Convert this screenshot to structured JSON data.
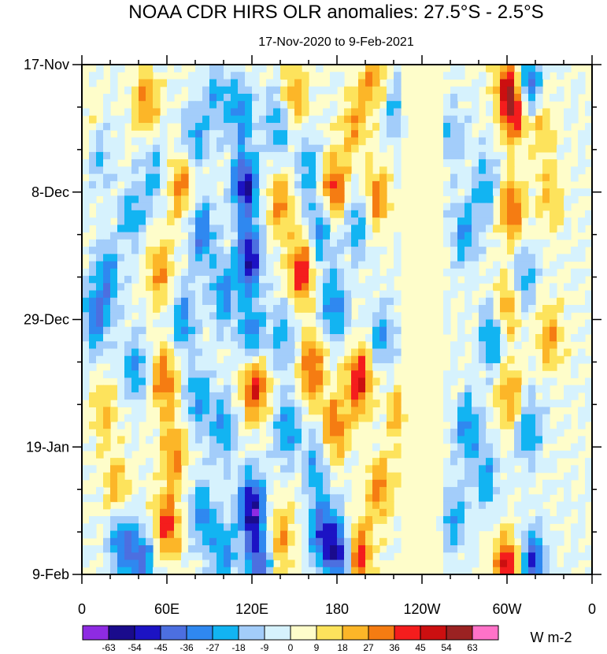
{
  "chart_data": {
    "type": "heatmap",
    "title": "NOAA CDR HIRS OLR anomalies: 27.5°S - 2.5°S",
    "subtitle": "17-Nov-2020 to 9-Feb-2021",
    "xlabel": "",
    "ylabel": "",
    "x_range_deg_east": [
      0,
      360
    ],
    "x_ticks": [
      {
        "deg": 0,
        "label": "0"
      },
      {
        "deg": 60,
        "label": "60E"
      },
      {
        "deg": 120,
        "label": "120E"
      },
      {
        "deg": 180,
        "label": "180"
      },
      {
        "deg": 240,
        "label": "120W"
      },
      {
        "deg": 300,
        "label": "60W"
      },
      {
        "deg": 360,
        "label": "0"
      }
    ],
    "y_range_days": [
      0,
      84
    ],
    "y_ticks": [
      {
        "day": 0,
        "label": "17-Nov"
      },
      {
        "day": 21,
        "label": "8-Dec"
      },
      {
        "day": 42,
        "label": "29-Dec"
      },
      {
        "day": 63,
        "label": "19-Jan"
      },
      {
        "day": 84,
        "label": "9-Feb"
      }
    ],
    "colorbar": {
      "units": "W m-2",
      "levels": [
        "-63",
        "-54",
        "-45",
        "-36",
        "-27",
        "-18",
        "-9",
        "0",
        "9",
        "18",
        "27",
        "36",
        "45",
        "54",
        "63"
      ],
      "colors": [
        "#8e2be2",
        "#1a0b8c",
        "#1c13c4",
        "#4c6fe0",
        "#2f88f0",
        "#12b4f2",
        "#a3cdfa",
        "#d6f2fd",
        "#fefdca",
        "#fde35c",
        "#fcb628",
        "#f57c12",
        "#f41d1d",
        "#cc0f10",
        "#9b2222",
        "#ff72c8"
      ]
    },
    "anomaly_features": [
      {
        "lon": 5,
        "day": 10,
        "value": 10
      },
      {
        "lon": 12,
        "day": 15,
        "value": -18
      },
      {
        "lon": 18,
        "day": 35,
        "value": -30
      },
      {
        "lon": 10,
        "day": 42,
        "value": -36
      },
      {
        "lon": 15,
        "day": 57,
        "value": 20
      },
      {
        "lon": 25,
        "day": 70,
        "value": 25
      },
      {
        "lon": 28,
        "day": 78,
        "value": -36
      },
      {
        "lon": 35,
        "day": 25,
        "value": -25
      },
      {
        "lon": 38,
        "day": 50,
        "value": -27
      },
      {
        "lon": 42,
        "day": 82,
        "value": -40
      },
      {
        "lon": 45,
        "day": 6,
        "value": 28
      },
      {
        "lon": 50,
        "day": 18,
        "value": -20
      },
      {
        "lon": 55,
        "day": 34,
        "value": 28
      },
      {
        "lon": 58,
        "day": 52,
        "value": 36
      },
      {
        "lon": 65,
        "day": 64,
        "value": 30
      },
      {
        "lon": 60,
        "day": 76,
        "value": 40
      },
      {
        "lon": 70,
        "day": 20,
        "value": 30
      },
      {
        "lon": 72,
        "day": 42,
        "value": -30
      },
      {
        "lon": 80,
        "day": 12,
        "value": -25
      },
      {
        "lon": 85,
        "day": 28,
        "value": -35
      },
      {
        "lon": 82,
        "day": 55,
        "value": -30
      },
      {
        "lon": 85,
        "day": 74,
        "value": -30
      },
      {
        "lon": 95,
        "day": 5,
        "value": -22
      },
      {
        "lon": 100,
        "day": 38,
        "value": -30
      },
      {
        "lon": 100,
        "day": 60,
        "value": -28
      },
      {
        "lon": 100,
        "day": 80,
        "value": -30
      },
      {
        "lon": 112,
        "day": 8,
        "value": -30
      },
      {
        "lon": 115,
        "day": 20,
        "value": -55
      },
      {
        "lon": 118,
        "day": 32,
        "value": -55
      },
      {
        "lon": 120,
        "day": 45,
        "value": -35
      },
      {
        "lon": 122,
        "day": 53,
        "value": 48
      },
      {
        "lon": 120,
        "day": 73,
        "value": -60
      },
      {
        "lon": 125,
        "day": 82,
        "value": -45
      },
      {
        "lon": 138,
        "day": 10,
        "value": -25
      },
      {
        "lon": 140,
        "day": 23,
        "value": 28
      },
      {
        "lon": 142,
        "day": 45,
        "value": -25
      },
      {
        "lon": 145,
        "day": 60,
        "value": -30
      },
      {
        "lon": 140,
        "day": 78,
        "value": 28
      },
      {
        "lon": 150,
        "day": 5,
        "value": 26
      },
      {
        "lon": 155,
        "day": 34,
        "value": 45
      },
      {
        "lon": 160,
        "day": 17,
        "value": -25
      },
      {
        "lon": 162,
        "day": 50,
        "value": 38
      },
      {
        "lon": 165,
        "day": 66,
        "value": -25
      },
      {
        "lon": 168,
        "day": 28,
        "value": -30
      },
      {
        "lon": 170,
        "day": 77,
        "value": -45
      },
      {
        "lon": 178,
        "day": 20,
        "value": 40
      },
      {
        "lon": 178,
        "day": 40,
        "value": -35
      },
      {
        "lon": 178,
        "day": 60,
        "value": 36
      },
      {
        "lon": 182,
        "day": 81,
        "value": -50
      },
      {
        "lon": 192,
        "day": 10,
        "value": 25
      },
      {
        "lon": 195,
        "day": 26,
        "value": -28
      },
      {
        "lon": 196,
        "day": 52,
        "value": 48
      },
      {
        "lon": 195,
        "day": 81,
        "value": 45
      },
      {
        "lon": 205,
        "day": 2,
        "value": 28
      },
      {
        "lon": 208,
        "day": 22,
        "value": 32
      },
      {
        "lon": 212,
        "day": 45,
        "value": -25
      },
      {
        "lon": 210,
        "day": 70,
        "value": 30
      },
      {
        "lon": 222,
        "day": 8,
        "value": -20
      },
      {
        "lon": 225,
        "day": 58,
        "value": 25
      },
      {
        "lon": 262,
        "day": 12,
        "value": -18
      },
      {
        "lon": 270,
        "day": 28,
        "value": -28
      },
      {
        "lon": 272,
        "day": 60,
        "value": -30
      },
      {
        "lon": 262,
        "day": 75,
        "value": -27
      },
      {
        "lon": 285,
        "day": 20,
        "value": -25
      },
      {
        "lon": 290,
        "day": 45,
        "value": -30
      },
      {
        "lon": 285,
        "day": 68,
        "value": -25
      },
      {
        "lon": 300,
        "day": 3,
        "value": 30
      },
      {
        "lon": 305,
        "day": 7,
        "value": 50
      },
      {
        "lon": 303,
        "day": 24,
        "value": 38
      },
      {
        "lon": 300,
        "day": 40,
        "value": 28
      },
      {
        "lon": 302,
        "day": 55,
        "value": 30
      },
      {
        "lon": 300,
        "day": 83,
        "value": 48
      },
      {
        "lon": 315,
        "day": 3,
        "value": -45
      },
      {
        "lon": 312,
        "day": 35,
        "value": -25
      },
      {
        "lon": 315,
        "day": 60,
        "value": -30
      },
      {
        "lon": 318,
        "day": 82,
        "value": -45
      },
      {
        "lon": 325,
        "day": 10,
        "value": 20
      },
      {
        "lon": 330,
        "day": 45,
        "value": 25
      },
      {
        "lon": 330,
        "day": 22,
        "value": 20
      }
    ]
  }
}
